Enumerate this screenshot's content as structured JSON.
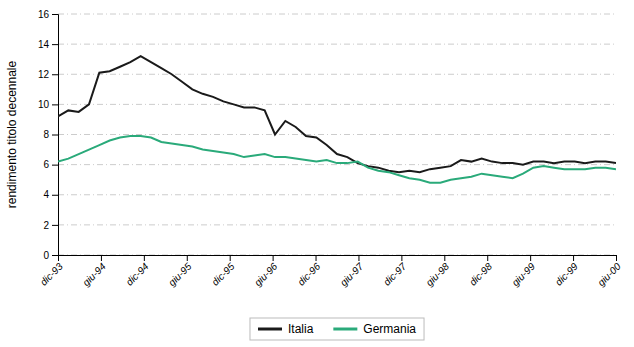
{
  "chart_data": {
    "type": "line",
    "ylabel": "rendimento titolo decennale",
    "x": [
      0,
      0.240741,
      0.481481,
      0.722222,
      0.962963,
      1.203704,
      1.444444,
      1.685185,
      1.925926,
      2.166667,
      2.407407,
      2.648148,
      2.888889,
      3.12963,
      3.37037,
      3.611111,
      3.851852,
      4.092593,
      4.333333,
      4.574074,
      4.814815,
      5.055556,
      5.296296,
      5.537037,
      5.777778,
      6.018519,
      6.259259,
      6.5,
      6.740741,
      6.981481,
      7.222222,
      7.462963,
      7.703704,
      7.944444,
      8.185185,
      8.425926,
      8.666667,
      8.907407,
      9.148148,
      9.388889,
      9.62963,
      9.87037,
      10.111111,
      10.351852,
      10.592593,
      10.833333,
      11.074074,
      11.314815,
      11.555556,
      11.796296,
      12.037037,
      12.277778,
      12.518519,
      12.759259,
      13
    ],
    "series": [
      {
        "name": "Italia",
        "color": "#1a1a1a",
        "values": [
          9.2,
          9.6,
          9.5,
          10.0,
          12.1,
          12.2,
          12.5,
          12.8,
          13.2,
          12.8,
          12.4,
          12.0,
          11.5,
          11.0,
          10.7,
          10.5,
          10.2,
          10.0,
          9.8,
          9.8,
          9.6,
          8.0,
          8.9,
          8.5,
          7.9,
          7.8,
          7.3,
          6.7,
          6.5,
          6.1,
          5.9,
          5.8,
          5.6,
          5.5,
          5.6,
          5.5,
          5.7,
          5.8,
          5.9,
          6.3,
          6.2,
          6.4,
          6.2,
          6.1,
          6.1,
          6.0,
          6.2,
          6.2,
          6.1,
          6.2,
          6.2,
          6.1,
          6.2,
          6.2,
          6.1
        ]
      },
      {
        "name": "Germania",
        "color": "#2aaa7a",
        "values": [
          6.2,
          6.4,
          6.7,
          7.0,
          7.3,
          7.6,
          7.8,
          7.9,
          7.9,
          7.8,
          7.5,
          7.4,
          7.3,
          7.2,
          7.0,
          6.9,
          6.8,
          6.7,
          6.5,
          6.6,
          6.7,
          6.5,
          6.5,
          6.4,
          6.3,
          6.2,
          6.3,
          6.1,
          6.1,
          6.2,
          5.8,
          5.6,
          5.5,
          5.3,
          5.1,
          5.0,
          4.8,
          4.8,
          5.0,
          5.1,
          5.2,
          5.4,
          5.3,
          5.2,
          5.1,
          5.4,
          5.8,
          5.9,
          5.8,
          5.7,
          5.7,
          5.7,
          5.8,
          5.8,
          5.7
        ]
      }
    ],
    "xlim": [
      0,
      13
    ],
    "xticks": [
      {
        "value": 0,
        "label": "dic-93"
      },
      {
        "value": 1,
        "label": "giu-94"
      },
      {
        "value": 2,
        "label": "dic-94"
      },
      {
        "value": 3,
        "label": "giu-95"
      },
      {
        "value": 4,
        "label": "dic-95"
      },
      {
        "value": 5,
        "label": "giu-96"
      },
      {
        "value": 6,
        "label": "dic-96"
      },
      {
        "value": 7,
        "label": "giu-97"
      },
      {
        "value": 8,
        "label": "dic-97"
      },
      {
        "value": 9,
        "label": "giu-98"
      },
      {
        "value": 10,
        "label": "dic-98"
      },
      {
        "value": 11,
        "label": "giu-99"
      },
      {
        "value": 12,
        "label": "dic-99"
      },
      {
        "value": 13,
        "label": "giu-00"
      }
    ],
    "ylim": [
      0,
      16
    ],
    "yticks": [
      0,
      2,
      4,
      6,
      8,
      10,
      12,
      14,
      16
    ],
    "grid": true,
    "legend": "bottom"
  }
}
